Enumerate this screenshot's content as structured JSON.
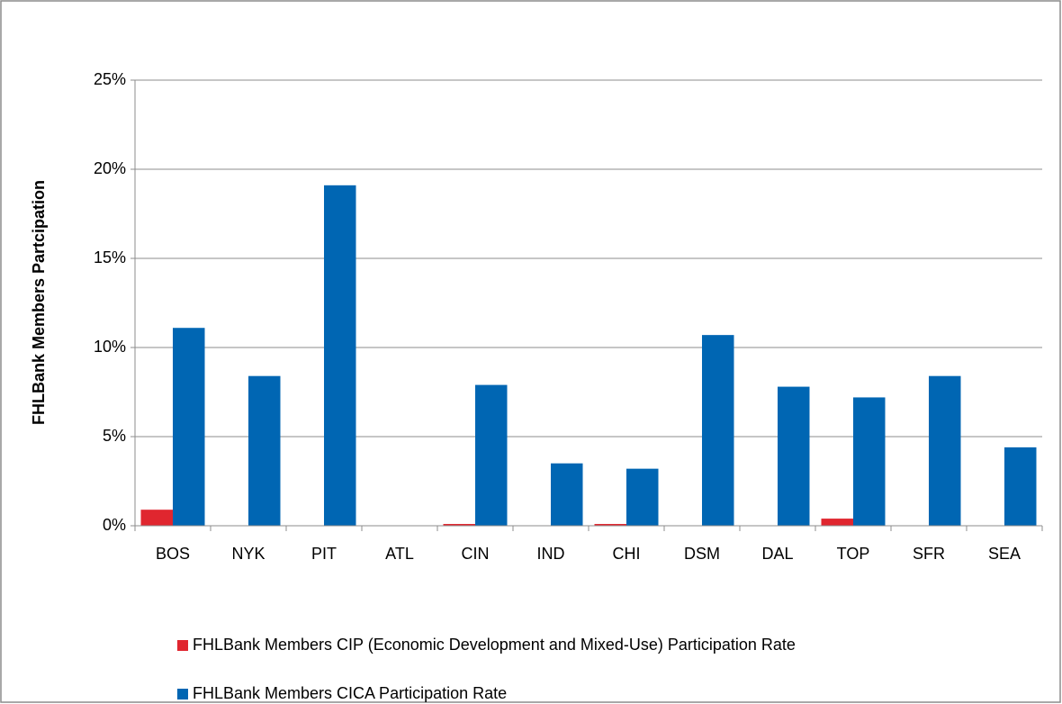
{
  "chart_data": {
    "type": "bar",
    "y_label": "FHLBank Members  Partcipation",
    "categories": [
      "BOS",
      "NYK",
      "PIT",
      "ATL",
      "CIN",
      "IND",
      "CHI",
      "DSM",
      "DAL",
      "TOP",
      "SFR",
      "SEA"
    ],
    "series": [
      {
        "name": "FHLBank Members CIP (Economic Development and Mixed-Use) Participation Rate",
        "color": "#e0262f",
        "values": [
          0.9,
          0,
          0,
          0,
          0.1,
          0,
          0.1,
          0,
          0,
          0.4,
          0,
          0
        ]
      },
      {
        "name": "FHLBank Members CICA Participation Rate",
        "color": "#0066b3",
        "values": [
          11.1,
          8.4,
          19.1,
          0,
          7.9,
          3.5,
          3.2,
          10.7,
          7.8,
          7.2,
          8.4,
          4.4
        ]
      }
    ],
    "ylim": [
      0,
      25
    ],
    "yticks": [
      {
        "value": 0,
        "label": "0%"
      },
      {
        "value": 5,
        "label": "5%"
      },
      {
        "value": 10,
        "label": "10%"
      },
      {
        "value": 15,
        "label": "15%"
      },
      {
        "value": 20,
        "label": "20%"
      },
      {
        "value": 25,
        "label": "25%"
      }
    ],
    "grid": true
  }
}
